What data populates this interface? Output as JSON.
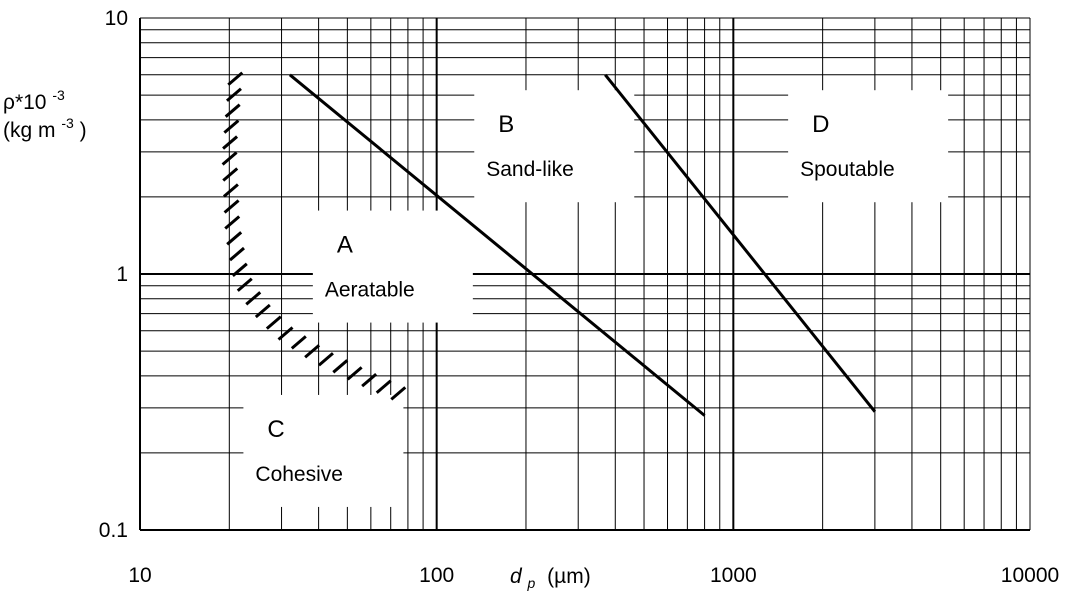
{
  "chart_data": {
    "type": "line",
    "x_scale": "log",
    "y_scale": "log",
    "xlim": [
      10,
      10000
    ],
    "ylim": [
      0.1,
      10
    ],
    "grid": true,
    "x_ticks": [
      "10",
      "100",
      "1000",
      "10000"
    ],
    "y_ticks": [
      "0.1",
      "1",
      "10"
    ],
    "xlabel": {
      "symbol": "d",
      "subscript": "p",
      "unit": "(µm)"
    },
    "ylabel": {
      "line1_symbol": "ρ*10",
      "line1_exp": "-3",
      "line2_text": "(kg m",
      "line2_exp": "-3",
      "line2_close": ")"
    },
    "series": [
      {
        "role": "A-B boundary",
        "x": [
          32,
          800
        ],
        "y": [
          6,
          0.28
        ]
      },
      {
        "role": "B-D boundary",
        "x": [
          370,
          3000
        ],
        "y": [
          6,
          0.29
        ]
      },
      {
        "role": "C-A boundary (hatched)",
        "x": [
          21,
          20,
          20.5,
          22,
          25,
          30,
          40,
          55,
          75
        ],
        "y": [
          6,
          3,
          1.5,
          0.95,
          0.75,
          0.6,
          0.48,
          0.4,
          0.34
        ],
        "style": "hatched"
      }
    ],
    "regions": [
      {
        "letter": "A",
        "name": "Aeratable",
        "x": 60,
        "y": 1.05
      },
      {
        "letter": "B",
        "name": "Sand-like",
        "x": 210,
        "y": 3.1
      },
      {
        "letter": "C",
        "name": "Cohesive",
        "x": 35,
        "y": 0.2
      },
      {
        "letter": "D",
        "name": "Spoutable",
        "x": 2400,
        "y": 3.1
      }
    ]
  }
}
